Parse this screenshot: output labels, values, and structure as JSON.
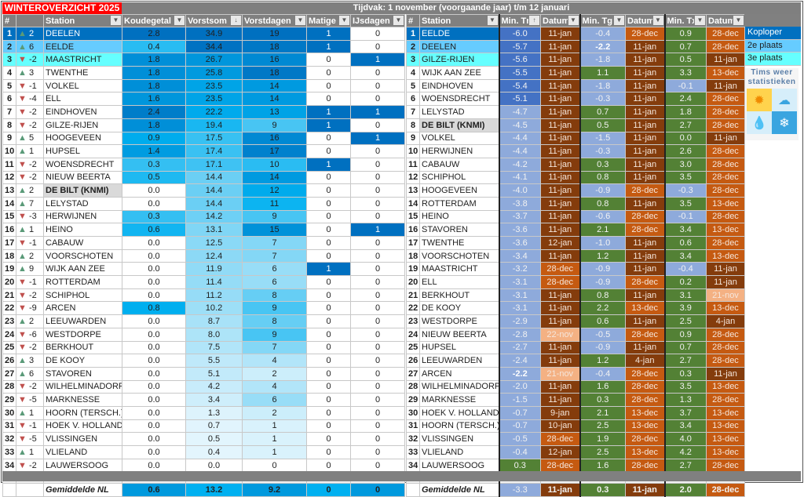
{
  "title": "WINTEROVERZICHT 2025",
  "period": "Tijdvak: 1 november (voorgaande jaar) t/m 12 januari",
  "colors": {
    "rank1": "#0070c0",
    "rank2": "#66ccff",
    "rank3": "#66ffff",
    "title_red": "#ff0000",
    "up": "#5a9a78",
    "down": "#c0504d",
    "tn_top": "#4472c4",
    "neg": "#8eaadb",
    "pos": "#538135",
    "date_jan": "#843c0c",
    "date_dec": "#c55a11",
    "date_nov": "#f4b183"
  },
  "left": {
    "headers": [
      "#",
      "",
      "Station",
      "Koudegetal",
      "Vorstsom",
      "Vorstdagen",
      "Matige v",
      "IJsdagen"
    ],
    "sort_icon": "sort-descending-icon",
    "rows": [
      [
        1,
        "up",
        2,
        "DEELEN",
        "2.8",
        "34.9",
        19,
        1,
        0
      ],
      [
        2,
        "up",
        6,
        "EELDE",
        "0.4",
        "34.4",
        18,
        1,
        0
      ],
      [
        3,
        "down",
        -2,
        "MAASTRICHT",
        "1.8",
        "26.7",
        16,
        0,
        1
      ],
      [
        4,
        "up",
        3,
        "TWENTHE",
        "1.8",
        "25.8",
        18,
        0,
        0
      ],
      [
        5,
        "down",
        -1,
        "VOLKEL",
        "1.8",
        "23.5",
        14,
        0,
        0
      ],
      [
        6,
        "down",
        -4,
        "ELL",
        "1.6",
        "23.5",
        14,
        0,
        0
      ],
      [
        7,
        "down",
        -2,
        "EINDHOVEN",
        "2.4",
        "22.2",
        13,
        1,
        1
      ],
      [
        8,
        "down",
        -2,
        "GILZE-RIJEN",
        "1.8",
        "19.4",
        9,
        1,
        0
      ],
      [
        9,
        "up",
        5,
        "HOOGEVEEN",
        "0.9",
        "17.5",
        16,
        0,
        1
      ],
      [
        10,
        "up",
        1,
        "HUPSEL",
        "1.4",
        "17.4",
        17,
        0,
        0
      ],
      [
        11,
        "down",
        -2,
        "WOENSDRECHT",
        "0.3",
        "17.1",
        10,
        1,
        0
      ],
      [
        12,
        "down",
        -2,
        "NIEUW BEERTA",
        "0.5",
        "14.4",
        14,
        0,
        0
      ],
      [
        13,
        "up",
        2,
        "DE BILT (KNMI)",
        "0.0",
        "14.4",
        12,
        0,
        0
      ],
      [
        14,
        "up",
        7,
        "LELYSTAD",
        "0.0",
        "14.4",
        11,
        0,
        0
      ],
      [
        15,
        "down",
        -3,
        "HERWIJNEN",
        "0.3",
        "14.2",
        9,
        0,
        0
      ],
      [
        16,
        "up",
        1,
        "HEINO",
        "0.6",
        "13.1",
        15,
        0,
        1
      ],
      [
        17,
        "down",
        -1,
        "CABAUW",
        "0.0",
        "12.5",
        7,
        0,
        0
      ],
      [
        18,
        "up",
        2,
        "VOORSCHOTEN",
        "0.0",
        "12.4",
        7,
        0,
        0
      ],
      [
        19,
        "up",
        9,
        "WIJK AAN ZEE",
        "0.0",
        "11.9",
        6,
        1,
        0
      ],
      [
        20,
        "down",
        -1,
        "ROTTERDAM",
        "0.0",
        "11.4",
        6,
        0,
        0
      ],
      [
        21,
        "down",
        -2,
        "SCHIPHOL",
        "0.0",
        "11.2",
        8,
        0,
        0
      ],
      [
        22,
        "down",
        -9,
        "ARCEN",
        "0.8",
        "10.2",
        9,
        0,
        0
      ],
      [
        23,
        "up",
        2,
        "LEEUWARDEN",
        "0.0",
        "8.7",
        8,
        0,
        0
      ],
      [
        24,
        "down",
        -6,
        "WESTDORPE",
        "0.0",
        "8.0",
        9,
        0,
        0
      ],
      [
        25,
        "down",
        -2,
        "BERKHOUT",
        "0.0",
        "7.5",
        7,
        0,
        0
      ],
      [
        26,
        "up",
        3,
        "DE KOOY",
        "0.0",
        "5.5",
        4,
        0,
        0
      ],
      [
        27,
        "up",
        6,
        "STAVOREN",
        "0.0",
        "5.1",
        2,
        0,
        0
      ],
      [
        28,
        "down",
        -2,
        "WILHELMINADORP",
        "0.0",
        "4.2",
        4,
        0,
        0
      ],
      [
        29,
        "down",
        -5,
        "MARKNESSE",
        "0.0",
        "3.4",
        6,
        0,
        0
      ],
      [
        30,
        "up",
        1,
        "HOORN (TERSCH.)",
        "0.0",
        "1.3",
        2,
        0,
        0
      ],
      [
        31,
        "down",
        -1,
        "HOEK V. HOLLAND",
        "0.0",
        "0.7",
        1,
        0,
        0
      ],
      [
        32,
        "down",
        -5,
        "VLISSINGEN",
        "0.0",
        "0.5",
        1,
        0,
        0
      ],
      [
        33,
        "up",
        1,
        "VLIELAND",
        "0.0",
        "0.4",
        1,
        0,
        0
      ],
      [
        34,
        "down",
        -2,
        "LAUWERSOOG",
        "0.0",
        "0.0",
        0,
        0,
        0
      ]
    ],
    "average": {
      "label": "Gemiddelde NL",
      "values": [
        "0.6",
        "13.2",
        "9.2",
        "0",
        "0"
      ]
    }
  },
  "right": {
    "headers": [
      "#",
      "Station",
      "Min. Tn",
      "Datum",
      "Min. Tg",
      "Datum",
      "Min. Tx",
      "Datum"
    ],
    "sort_icon": "sort-ascending-icon",
    "rows": [
      [
        1,
        "EELDE",
        "-6.0",
        "11-jan",
        "-0.4",
        "28-dec",
        "0.9",
        "28-dec"
      ],
      [
        2,
        "DEELEN",
        "-5.7",
        "11-jan",
        "-2.2",
        "11-jan",
        "0.7",
        "28-dec"
      ],
      [
        3,
        "GILZE-RIJEN",
        "-5.6",
        "11-jan",
        "-1.8",
        "11-jan",
        "0.5",
        "11-jan"
      ],
      [
        4,
        "WIJK AAN ZEE",
        "-5.5",
        "11-jan",
        "1.1",
        "11-jan",
        "3.3",
        "13-dec"
      ],
      [
        5,
        "EINDHOVEN",
        "-5.4",
        "11-jan",
        "-1.8",
        "11-jan",
        "-0.1",
        "11-jan"
      ],
      [
        6,
        "WOENSDRECHT",
        "-5.1",
        "11-jan",
        "-0.3",
        "11-jan",
        "2.4",
        "28-dec"
      ],
      [
        7,
        "LELYSTAD",
        "-4.7",
        "11-jan",
        "0.7",
        "11-jan",
        "1.8",
        "28-dec"
      ],
      [
        8,
        "DE BILT (KNMI)",
        "-4.5",
        "11-jan",
        "0.5",
        "11-jan",
        "2.7",
        "28-dec"
      ],
      [
        9,
        "VOLKEL",
        "-4.4",
        "11-jan",
        "-1.5",
        "11-jan",
        "0.0",
        "11-jan"
      ],
      [
        10,
        "HERWIJNEN",
        "-4.4",
        "11-jan",
        "-0.3",
        "11-jan",
        "2.6",
        "28-dec"
      ],
      [
        11,
        "CABAUW",
        "-4.2",
        "11-jan",
        "0.3",
        "11-jan",
        "3.0",
        "28-dec"
      ],
      [
        12,
        "SCHIPHOL",
        "-4.1",
        "11-jan",
        "0.8",
        "11-jan",
        "3.5",
        "28-dec"
      ],
      [
        13,
        "HOOGEVEEN",
        "-4.0",
        "11-jan",
        "-0.9",
        "28-dec",
        "-0.3",
        "28-dec"
      ],
      [
        14,
        "ROTTERDAM",
        "-3.8",
        "11-jan",
        "0.8",
        "11-jan",
        "3.5",
        "13-dec"
      ],
      [
        15,
        "HEINO",
        "-3.7",
        "11-jan",
        "-0.6",
        "28-dec",
        "-0.1",
        "28-dec"
      ],
      [
        16,
        "STAVOREN",
        "-3.6",
        "11-jan",
        "2.1",
        "28-dec",
        "3.4",
        "13-dec"
      ],
      [
        17,
        "TWENTHE",
        "-3.6",
        "12-jan",
        "-1.0",
        "11-jan",
        "0.6",
        "28-dec"
      ],
      [
        18,
        "VOORSCHOTEN",
        "-3.4",
        "11-jan",
        "1.2",
        "11-jan",
        "3.4",
        "13-dec"
      ],
      [
        19,
        "MAASTRICHT",
        "-3.2",
        "28-dec",
        "-0.9",
        "11-jan",
        "-0.4",
        "11-jan"
      ],
      [
        20,
        "ELL",
        "-3.1",
        "28-dec",
        "-0.9",
        "28-dec",
        "0.2",
        "11-jan"
      ],
      [
        21,
        "BERKHOUT",
        "-3.1",
        "11-jan",
        "0.8",
        "11-jan",
        "3.1",
        "21-nov"
      ],
      [
        22,
        "DE KOOY",
        "-3.1",
        "11-jan",
        "2.2",
        "13-dec",
        "3.9",
        "13-dec"
      ],
      [
        23,
        "WESTDORPE",
        "-2.9",
        "11-jan",
        "0.6",
        "11-jan",
        "2.5",
        "4-jan"
      ],
      [
        24,
        "NIEUW BEERTA",
        "-2.8",
        "22-nov",
        "-0.5",
        "28-dec",
        "0.9",
        "28-dec"
      ],
      [
        25,
        "HUPSEL",
        "-2.7",
        "11-jan",
        "-0.9",
        "11-jan",
        "0.7",
        "28-dec"
      ],
      [
        26,
        "LEEUWARDEN",
        "-2.4",
        "11-jan",
        "1.2",
        "4-jan",
        "2.7",
        "28-dec"
      ],
      [
        27,
        "ARCEN",
        "-2.2",
        "21-nov",
        "-0.4",
        "28-dec",
        "0.3",
        "11-jan"
      ],
      [
        28,
        "WILHELMINADORP",
        "-2.0",
        "11-jan",
        "1.6",
        "28-dec",
        "3.5",
        "13-dec"
      ],
      [
        29,
        "MARKNESSE",
        "-1.5",
        "11-jan",
        "0.3",
        "28-dec",
        "1.3",
        "28-dec"
      ],
      [
        30,
        "HOEK V. HOLLAND",
        "-0.7",
        "9-jan",
        "2.1",
        "13-dec",
        "3.7",
        "13-dec"
      ],
      [
        31,
        "HOORN (TERSCH.)",
        "-0.7",
        "10-jan",
        "2.5",
        "13-dec",
        "3.4",
        "13-dec"
      ],
      [
        32,
        "VLISSINGEN",
        "-0.5",
        "28-dec",
        "1.9",
        "28-dec",
        "4.0",
        "13-dec"
      ],
      [
        33,
        "VLIELAND",
        "-0.4",
        "12-jan",
        "2.5",
        "13-dec",
        "4.2",
        "13-dec"
      ],
      [
        34,
        "LAUWERSOOG",
        "0.3",
        "28-dec",
        "1.6",
        "28-dec",
        "2.7",
        "28-dec"
      ]
    ],
    "average": {
      "label": "Gemiddelde NL",
      "values": [
        "-3.3",
        "11-jan",
        "0.3",
        "11-jan",
        "2.0",
        "28-dec"
      ]
    }
  },
  "legend": {
    "items": [
      "Koploper",
      "2e plaats",
      "3e plaats"
    ],
    "logo_text": "Tims weer statistieken",
    "logo_icons": [
      "sun-icon",
      "cloud-icon",
      "raindrop-icon",
      "snowflake-icon"
    ]
  }
}
